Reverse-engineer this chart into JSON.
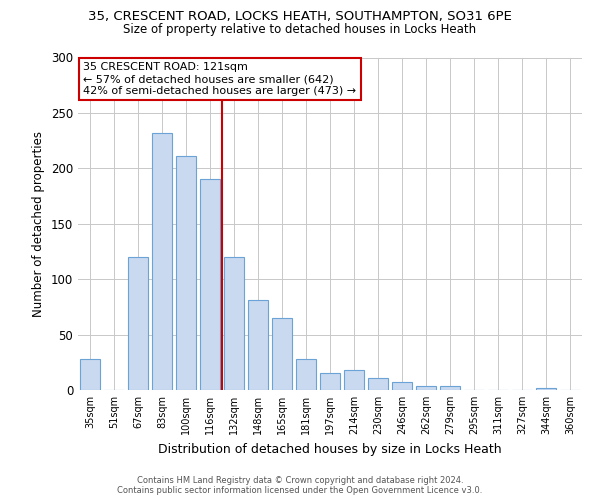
{
  "title1": "35, CRESCENT ROAD, LOCKS HEATH, SOUTHAMPTON, SO31 6PE",
  "title2": "Size of property relative to detached houses in Locks Heath",
  "xlabel": "Distribution of detached houses by size in Locks Heath",
  "ylabel": "Number of detached properties",
  "bar_labels": [
    "35sqm",
    "51sqm",
    "67sqm",
    "83sqm",
    "100sqm",
    "116sqm",
    "132sqm",
    "148sqm",
    "165sqm",
    "181sqm",
    "197sqm",
    "214sqm",
    "230sqm",
    "246sqm",
    "262sqm",
    "279sqm",
    "295sqm",
    "311sqm",
    "327sqm",
    "344sqm",
    "360sqm"
  ],
  "bar_heights": [
    28,
    0,
    120,
    232,
    211,
    190,
    120,
    81,
    65,
    28,
    15,
    18,
    11,
    7,
    4,
    4,
    0,
    0,
    0,
    2,
    0
  ],
  "bar_color": "#c9d9f0",
  "bar_edge_color": "#6ba3d6",
  "vline_x": 5.5,
  "vline_color": "#cc0000",
  "annotation_title": "35 CRESCENT ROAD: 121sqm",
  "annotation_line1": "← 57% of detached houses are smaller (642)",
  "annotation_line2": "42% of semi-detached houses are larger (473) →",
  "annotation_box_color": "#ffffff",
  "annotation_box_edge": "#cc0000",
  "ylim": [
    0,
    300
  ],
  "yticks": [
    0,
    50,
    100,
    150,
    200,
    250,
    300
  ],
  "footer1": "Contains HM Land Registry data © Crown copyright and database right 2024.",
  "footer2": "Contains public sector information licensed under the Open Government Licence v3.0.",
  "bg_color": "#ffffff",
  "grid_color": "#c8c8c8"
}
